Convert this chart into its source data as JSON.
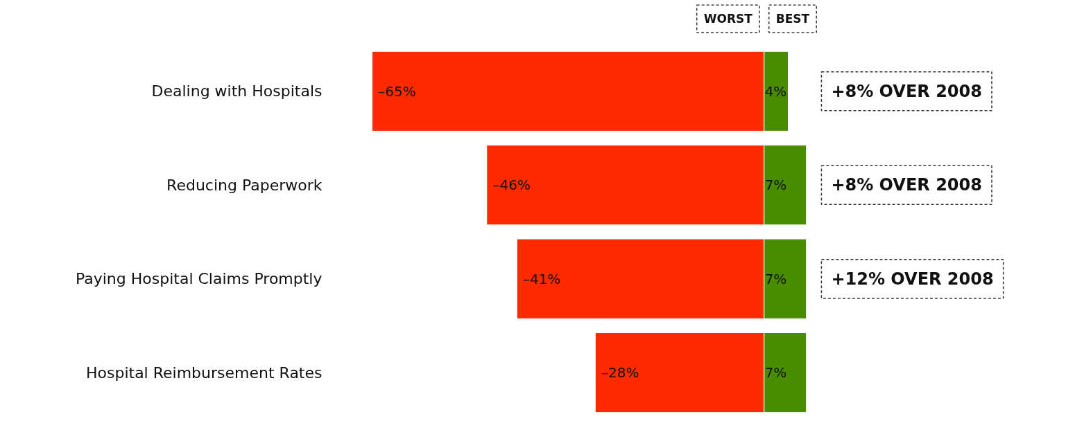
{
  "chart_data": {
    "type": "bar",
    "orientation": "horizontal",
    "stacked": true,
    "categories": [
      "Dealing with Hospitals",
      "Reducing Paperwork",
      "Paying Hospital Claims Promptly",
      "Hospital Reimbursement Rates"
    ],
    "series": [
      {
        "name": "WORST",
        "color": "#ff2a00",
        "values": [
          -65,
          -46,
          -41,
          -28
        ],
        "value_labels": [
          "–65%",
          "–46%",
          "–41%",
          "–28%"
        ]
      },
      {
        "name": "BEST",
        "color": "#4a8c00",
        "values": [
          4,
          7,
          7,
          7
        ],
        "value_labels": [
          "4%",
          "7%",
          "7%",
          "7%"
        ]
      }
    ],
    "annotations": [
      "+8% OVER 2008",
      "+8% OVER 2008",
      "+12% OVER 2008"
    ],
    "tick_labels": "y",
    "grid": false,
    "legend": false
  }
}
